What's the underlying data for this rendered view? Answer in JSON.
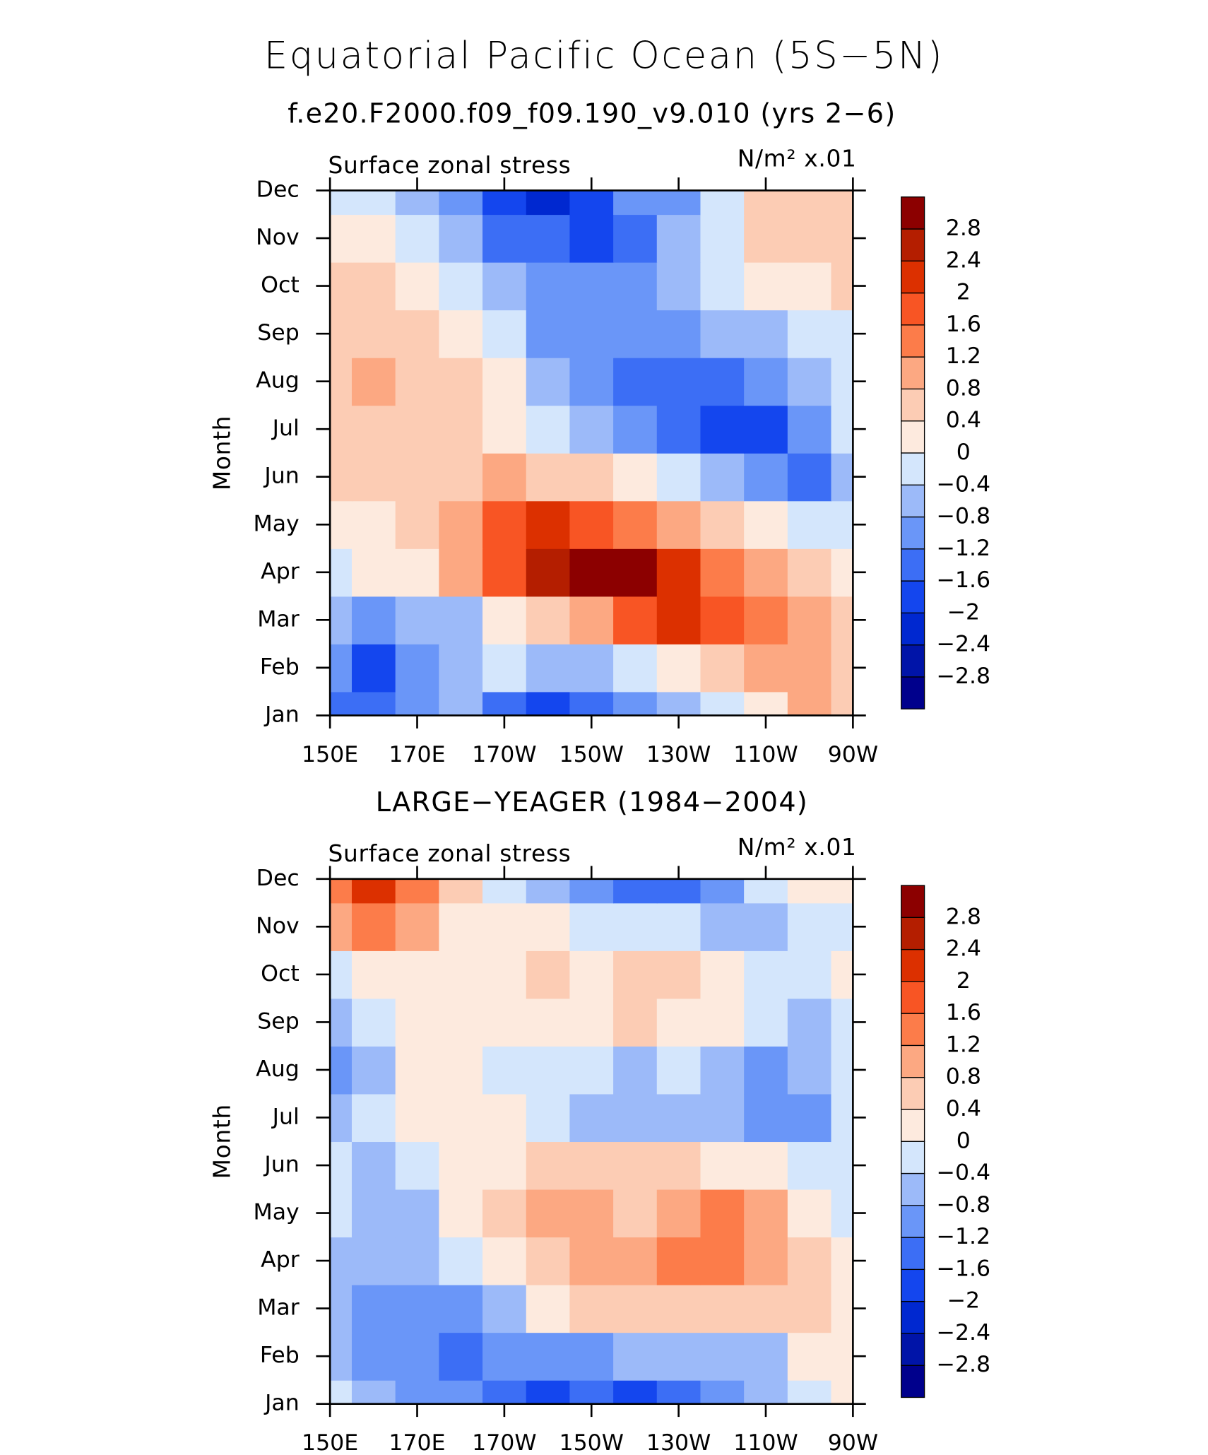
{
  "title": "Equatorial Pacific Ocean (5S−5N)",
  "chart_data": [
    {
      "type": "contour",
      "subtitle": "f.e20.F2000.f09_f09.190_v9.010 (yrs 2−6)",
      "left_label": "Surface zonal stress",
      "right_label": "N/m² x.01",
      "y_label": "Month",
      "categories": [
        "Jan",
        "Feb",
        "Mar",
        "Apr",
        "May",
        "Jun",
        "Jul",
        "Aug",
        "Sep",
        "Oct",
        "Nov",
        "Dec"
      ],
      "x": [
        150,
        160,
        170,
        180,
        190,
        200,
        210,
        220,
        230,
        240,
        250,
        260,
        270
      ],
      "xlim": [
        150,
        270
      ],
      "xticks": [
        {
          "value": 150,
          "label": "150E"
        },
        {
          "value": 170,
          "label": "170E"
        },
        {
          "value": 190,
          "label": "170W"
        },
        {
          "value": 210,
          "label": "150W"
        },
        {
          "value": 230,
          "label": "130W"
        },
        {
          "value": 250,
          "label": "110W"
        },
        {
          "value": 270,
          "label": "90W"
        }
      ],
      "z": [
        [
          -1.2,
          -1.4,
          -0.8,
          -0.6,
          -1.4,
          -1.8,
          -1.4,
          -1.0,
          -0.6,
          -0.2,
          0.4,
          0.9,
          0.6
        ],
        [
          -1.0,
          -1.8,
          -1.0,
          -0.6,
          -0.2,
          -0.6,
          -0.4,
          -0.2,
          0.2,
          0.6,
          1.0,
          1.1,
          0.8
        ],
        [
          -0.6,
          -0.9,
          -0.7,
          -0.4,
          0.2,
          0.8,
          1.2,
          1.8,
          2.4,
          2.0,
          1.3,
          0.9,
          0.6
        ],
        [
          -0.2,
          0.1,
          0.3,
          0.9,
          1.8,
          2.6,
          3.1,
          3.0,
          2.4,
          1.6,
          1.0,
          0.6,
          0.3
        ],
        [
          0.3,
          0.3,
          0.5,
          1.0,
          2.0,
          2.2,
          2.0,
          1.6,
          1.0,
          0.5,
          0.1,
          -0.2,
          -0.2
        ],
        [
          0.8,
          0.5,
          0.5,
          0.7,
          0.9,
          0.8,
          0.5,
          0.3,
          0.0,
          -0.4,
          -0.9,
          -1.4,
          -0.6
        ],
        [
          0.5,
          0.6,
          0.5,
          0.6,
          0.3,
          -0.3,
          -0.6,
          -1.0,
          -1.5,
          -1.9,
          -1.7,
          -0.8,
          -0.3
        ],
        [
          0.6,
          0.9,
          0.7,
          0.6,
          0.1,
          -0.7,
          -1.0,
          -1.3,
          -1.4,
          -1.5,
          -1.0,
          -0.5,
          -0.2
        ],
        [
          0.6,
          0.6,
          0.5,
          0.4,
          -0.2,
          -0.9,
          -1.0,
          -1.1,
          -0.9,
          -0.6,
          -0.5,
          -0.1,
          0.0
        ],
        [
          0.6,
          0.6,
          0.3,
          -0.1,
          -0.5,
          -0.9,
          -1.0,
          -1.0,
          -0.7,
          -0.2,
          0.3,
          0.4,
          0.5
        ],
        [
          0.2,
          0.3,
          -0.2,
          -0.6,
          -1.2,
          -1.5,
          -1.8,
          -1.2,
          -0.6,
          0.0,
          0.5,
          0.5,
          0.5
        ],
        [
          -0.2,
          -0.2,
          -0.4,
          -1.0,
          -1.8,
          -2.0,
          -1.6,
          -1.0,
          -0.8,
          -0.2,
          0.5,
          0.6,
          0.5
        ]
      ],
      "levels": [
        {
          "value": -2.8,
          "label": "−2.8"
        },
        {
          "value": -2.4,
          "label": "−2.4"
        },
        {
          "value": -2,
          "label": "−2"
        },
        {
          "value": -1.6,
          "label": "−1.6"
        },
        {
          "value": -1.2,
          "label": "−1.2"
        },
        {
          "value": -0.8,
          "label": "−0.8"
        },
        {
          "value": -0.4,
          "label": "−0.4"
        },
        0,
        0.4,
        0.8,
        1.2,
        1.6,
        2,
        2.4,
        2.8
      ],
      "colors": [
        "#00008c",
        "#0014a8",
        "#0028d0",
        "#1446ee",
        "#3c6ef5",
        "#6a96f8",
        "#9cbaf9",
        "#d4e6fc",
        "#fdeade",
        "#fcccb4",
        "#fca882",
        "#fc7c4a",
        "#f85524",
        "#dc3000",
        "#b41e00",
        "#8c0000"
      ]
    },
    {
      "type": "contour",
      "subtitle": "LARGE−YEAGER (1984−2004)",
      "left_label": "Surface zonal stress",
      "right_label": "N/m² x.01",
      "y_label": "Month",
      "categories": [
        "Jan",
        "Feb",
        "Mar",
        "Apr",
        "May",
        "Jun",
        "Jul",
        "Aug",
        "Sep",
        "Oct",
        "Nov",
        "Dec"
      ],
      "x": [
        150,
        160,
        170,
        180,
        190,
        200,
        210,
        220,
        230,
        240,
        250,
        260,
        270
      ],
      "xlim": [
        150,
        270
      ],
      "xticks": [
        {
          "value": 150,
          "label": "150E"
        },
        {
          "value": 170,
          "label": "170E"
        },
        {
          "value": 190,
          "label": "170W"
        },
        {
          "value": 210,
          "label": "150W"
        },
        {
          "value": 230,
          "label": "130W"
        },
        {
          "value": 250,
          "label": "110W"
        },
        {
          "value": 270,
          "label": "90W"
        }
      ],
      "z": [
        [
          -0.2,
          -0.6,
          -0.8,
          -0.8,
          -1.4,
          -1.6,
          -1.5,
          -1.7,
          -1.4,
          -1.0,
          -0.7,
          -0.2,
          0.2
        ],
        [
          -0.4,
          -0.8,
          -1.1,
          -1.2,
          -1.1,
          -1.0,
          -0.8,
          -0.6,
          -0.6,
          -0.6,
          -0.5,
          0.2,
          0.3
        ],
        [
          -0.6,
          -1.0,
          -1.1,
          -0.8,
          -0.4,
          0.1,
          0.5,
          0.6,
          0.7,
          0.7,
          0.6,
          0.5,
          0.2
        ],
        [
          -0.4,
          -0.7,
          -0.6,
          -0.3,
          0.3,
          0.8,
          1.0,
          1.1,
          1.3,
          1.3,
          1.0,
          0.6,
          0.2
        ],
        [
          -0.3,
          -0.6,
          -0.4,
          0.1,
          0.5,
          0.9,
          0.9,
          0.8,
          1.0,
          1.3,
          1.1,
          0.4,
          0.0
        ],
        [
          -0.3,
          -0.4,
          -0.3,
          0.2,
          0.3,
          0.5,
          0.6,
          0.5,
          0.5,
          0.4,
          0.2,
          0.0,
          -0.2
        ],
        [
          -0.4,
          -0.3,
          0.1,
          0.2,
          0.1,
          -0.1,
          -0.5,
          -0.7,
          -0.5,
          -0.7,
          -1.0,
          -0.8,
          -0.2
        ],
        [
          -0.9,
          -0.4,
          0.1,
          0.2,
          0.0,
          -0.2,
          -0.2,
          -0.6,
          -0.3,
          -0.7,
          -0.8,
          -0.4,
          -0.1
        ],
        [
          -0.5,
          -0.2,
          0.1,
          0.2,
          0.3,
          0.3,
          0.4,
          0.6,
          0.4,
          0.1,
          -0.2,
          -0.4,
          -0.2
        ],
        [
          -0.1,
          0.3,
          0.3,
          0.2,
          0.2,
          0.5,
          0.4,
          0.5,
          0.6,
          0.2,
          -0.2,
          -0.3,
          0.3
        ],
        [
          1.1,
          1.3,
          0.9,
          0.3,
          0.1,
          0.1,
          -0.1,
          -0.2,
          -0.3,
          -0.5,
          -0.4,
          -0.2,
          0.0
        ],
        [
          1.6,
          2.2,
          1.3,
          0.6,
          0.0,
          -0.4,
          -0.8,
          -1.2,
          -1.4,
          -0.9,
          -0.2,
          0.1,
          0.2
        ]
      ],
      "levels": [
        {
          "value": -2.8,
          "label": "−2.8"
        },
        {
          "value": -2.4,
          "label": "−2.4"
        },
        {
          "value": -2,
          "label": "−2"
        },
        {
          "value": -1.6,
          "label": "−1.6"
        },
        {
          "value": -1.2,
          "label": "−1.2"
        },
        {
          "value": -0.8,
          "label": "−0.8"
        },
        {
          "value": -0.4,
          "label": "−0.4"
        },
        0,
        0.4,
        0.8,
        1.2,
        1.6,
        2,
        2.4,
        2.8
      ],
      "colors": [
        "#00008c",
        "#0014a8",
        "#0028d0",
        "#1446ee",
        "#3c6ef5",
        "#6a96f8",
        "#9cbaf9",
        "#d4e6fc",
        "#fdeade",
        "#fcccb4",
        "#fca882",
        "#fc7c4a",
        "#f85524",
        "#dc3000",
        "#b41e00",
        "#8c0000"
      ]
    }
  ]
}
